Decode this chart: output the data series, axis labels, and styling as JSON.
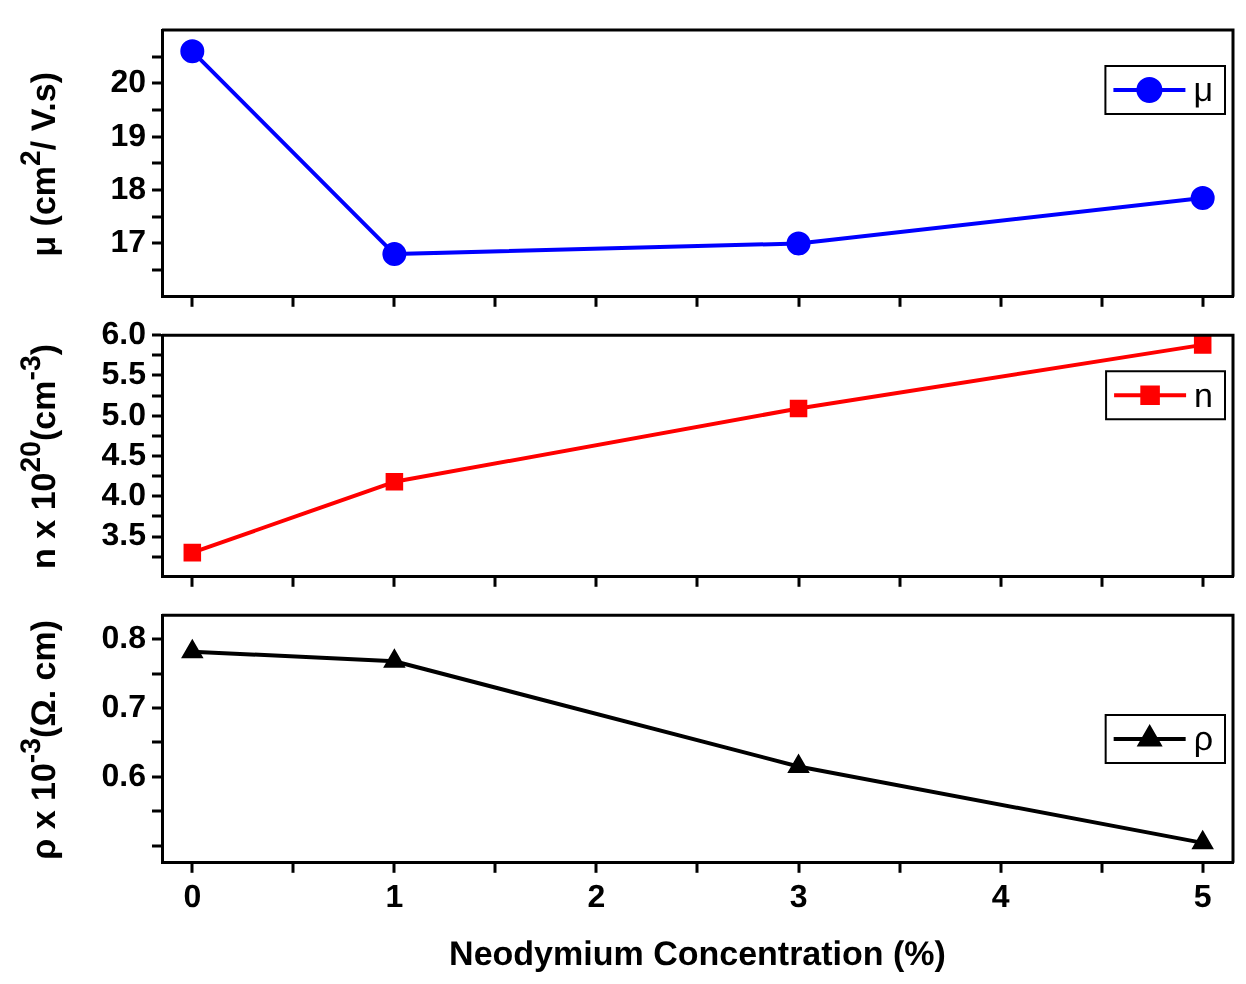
{
  "chart_data": [
    {
      "type": "line",
      "ylabel": "μ (cm$^{2}$/ V.s)",
      "x": [
        0,
        1,
        3,
        5
      ],
      "xlim": [
        -0.15,
        5.15
      ],
      "xticks": [
        0,
        {
          "value": 0.5,
          "label": null
        },
        1,
        {
          "value": 1.5,
          "label": null
        },
        2,
        {
          "value": 2.5,
          "label": null
        },
        3,
        {
          "value": 3.5,
          "label": null
        },
        4,
        {
          "value": 4.5,
          "label": null
        },
        5
      ],
      "ylim": [
        16,
        21
      ],
      "yticks": [
        {
          "value": 16.5,
          "label": null
        },
        17,
        {
          "value": 17.5,
          "label": null
        },
        18,
        {
          "value": 18.5,
          "label": null
        },
        19,
        {
          "value": 19.5,
          "label": null
        },
        20,
        {
          "value": 20.5,
          "label": null
        }
      ],
      "series": [
        {
          "name": "μ",
          "color": "#0000ff",
          "values": [
            20.6,
            16.8,
            17.0,
            17.85
          ]
        }
      ],
      "marker": "circle",
      "legend": "top right",
      "grid": false,
      "tick_labels": "y"
    },
    {
      "type": "line",
      "ylabel": "n x 10$^{20}$(cm$^{-3}$)",
      "x": [
        0,
        1,
        3,
        5
      ],
      "xlim": [
        -0.15,
        5.15
      ],
      "xticks": [
        0,
        {
          "value": 0.5,
          "label": null
        },
        1,
        {
          "value": 1.5,
          "label": null
        },
        2,
        {
          "value": 2.5,
          "label": null
        },
        3,
        {
          "value": 3.5,
          "label": null
        },
        4,
        {
          "value": 4.5,
          "label": null
        },
        5
      ],
      "ylim": [
        3.0,
        6.0
      ],
      "yticks": [
        {
          "value": 3.25,
          "label": null
        },
        3.5,
        {
          "value": 3.75,
          "label": null
        },
        {
          "value": 4,
          "label": "4.0"
        },
        {
          "value": 4.25,
          "label": null
        },
        4.5,
        {
          "value": 4.75,
          "label": null
        },
        {
          "value": 5,
          "label": "5.0"
        },
        {
          "value": 5.25,
          "label": null
        },
        5.5,
        {
          "value": 5.75,
          "label": null
        },
        {
          "value": 6,
          "label": "6.0"
        }
      ],
      "series": [
        {
          "name": "n",
          "color": "#ff0000",
          "values": [
            3.3,
            4.18,
            5.09,
            5.88
          ]
        }
      ],
      "marker": "square",
      "legend": "top right",
      "grid": false,
      "tick_labels": "y"
    },
    {
      "type": "line",
      "ylabel": "ρ x 10$^{-3}$(Ω. cm)",
      "xlabel": "Neodymium Concentration (%)",
      "x": [
        0,
        1,
        3,
        5
      ],
      "xlim": [
        -0.15,
        5.15
      ],
      "xticks": [
        0,
        {
          "value": 0.5,
          "label": null
        },
        1,
        {
          "value": 1.5,
          "label": null
        },
        2,
        {
          "value": 2.5,
          "label": null
        },
        3,
        {
          "value": 3.5,
          "label": null
        },
        4,
        {
          "value": 4.5,
          "label": null
        },
        5
      ],
      "ylim": [
        0.475,
        0.835
      ],
      "yticks": [
        {
          "value": 0.5,
          "label": null
        },
        {
          "value": 0.55,
          "label": null
        },
        0.6,
        {
          "value": 0.65,
          "label": null
        },
        0.7,
        {
          "value": 0.75,
          "label": null
        },
        0.8
      ],
      "series": [
        {
          "name": "ρ",
          "color": "#000000",
          "values": [
            0.782,
            0.768,
            0.615,
            0.504
          ]
        }
      ],
      "marker": "triangle",
      "legend": "right",
      "grid": false
    }
  ]
}
